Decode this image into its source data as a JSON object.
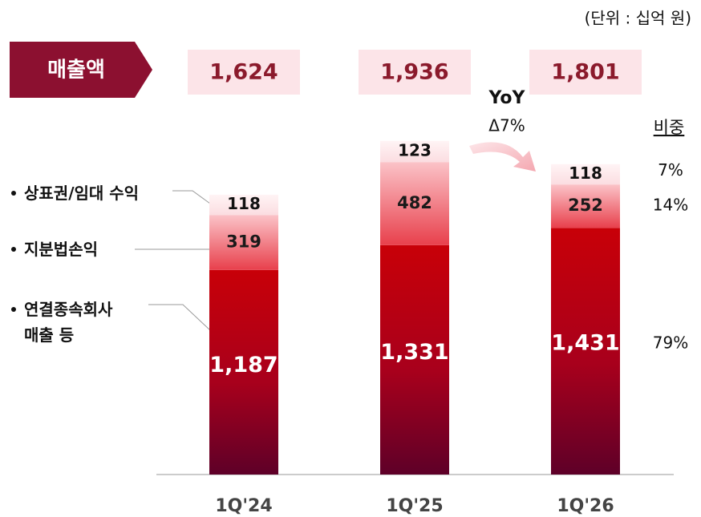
{
  "chart_data": {
    "type": "stacked_bar",
    "unit_note": "(단위 : 십억 원)",
    "total_label": "매출액",
    "categories": [
      "1Q'24",
      "1Q'25",
      "1Q'26"
    ],
    "series": [
      {
        "name": "연결종속회사 매출 등",
        "color": "#c00010",
        "values": [
          1187,
          1331,
          1431
        ],
        "value_labels": [
          "1,187",
          "1,331",
          "1,431"
        ]
      },
      {
        "name": "지분법손익",
        "color": "#f7a3ab",
        "values": [
          319,
          482,
          252
        ],
        "value_labels": [
          "319",
          "482",
          "252"
        ]
      },
      {
        "name": "상표권/임대 수익",
        "color": "#fde6e9",
        "values": [
          118,
          123,
          118
        ],
        "value_labels": [
          "118",
          "123",
          "118"
        ]
      }
    ],
    "totals": {
      "values": [
        1624,
        1936,
        1801
      ],
      "value_labels": [
        "1,624",
        "1,936",
        "1,801"
      ]
    },
    "yoy": {
      "title": "YoY",
      "change": "Δ7%"
    },
    "share": {
      "title": "비중",
      "values": [
        79,
        14,
        7
      ],
      "value_labels": [
        "79%",
        "14%",
        "7%"
      ]
    }
  }
}
